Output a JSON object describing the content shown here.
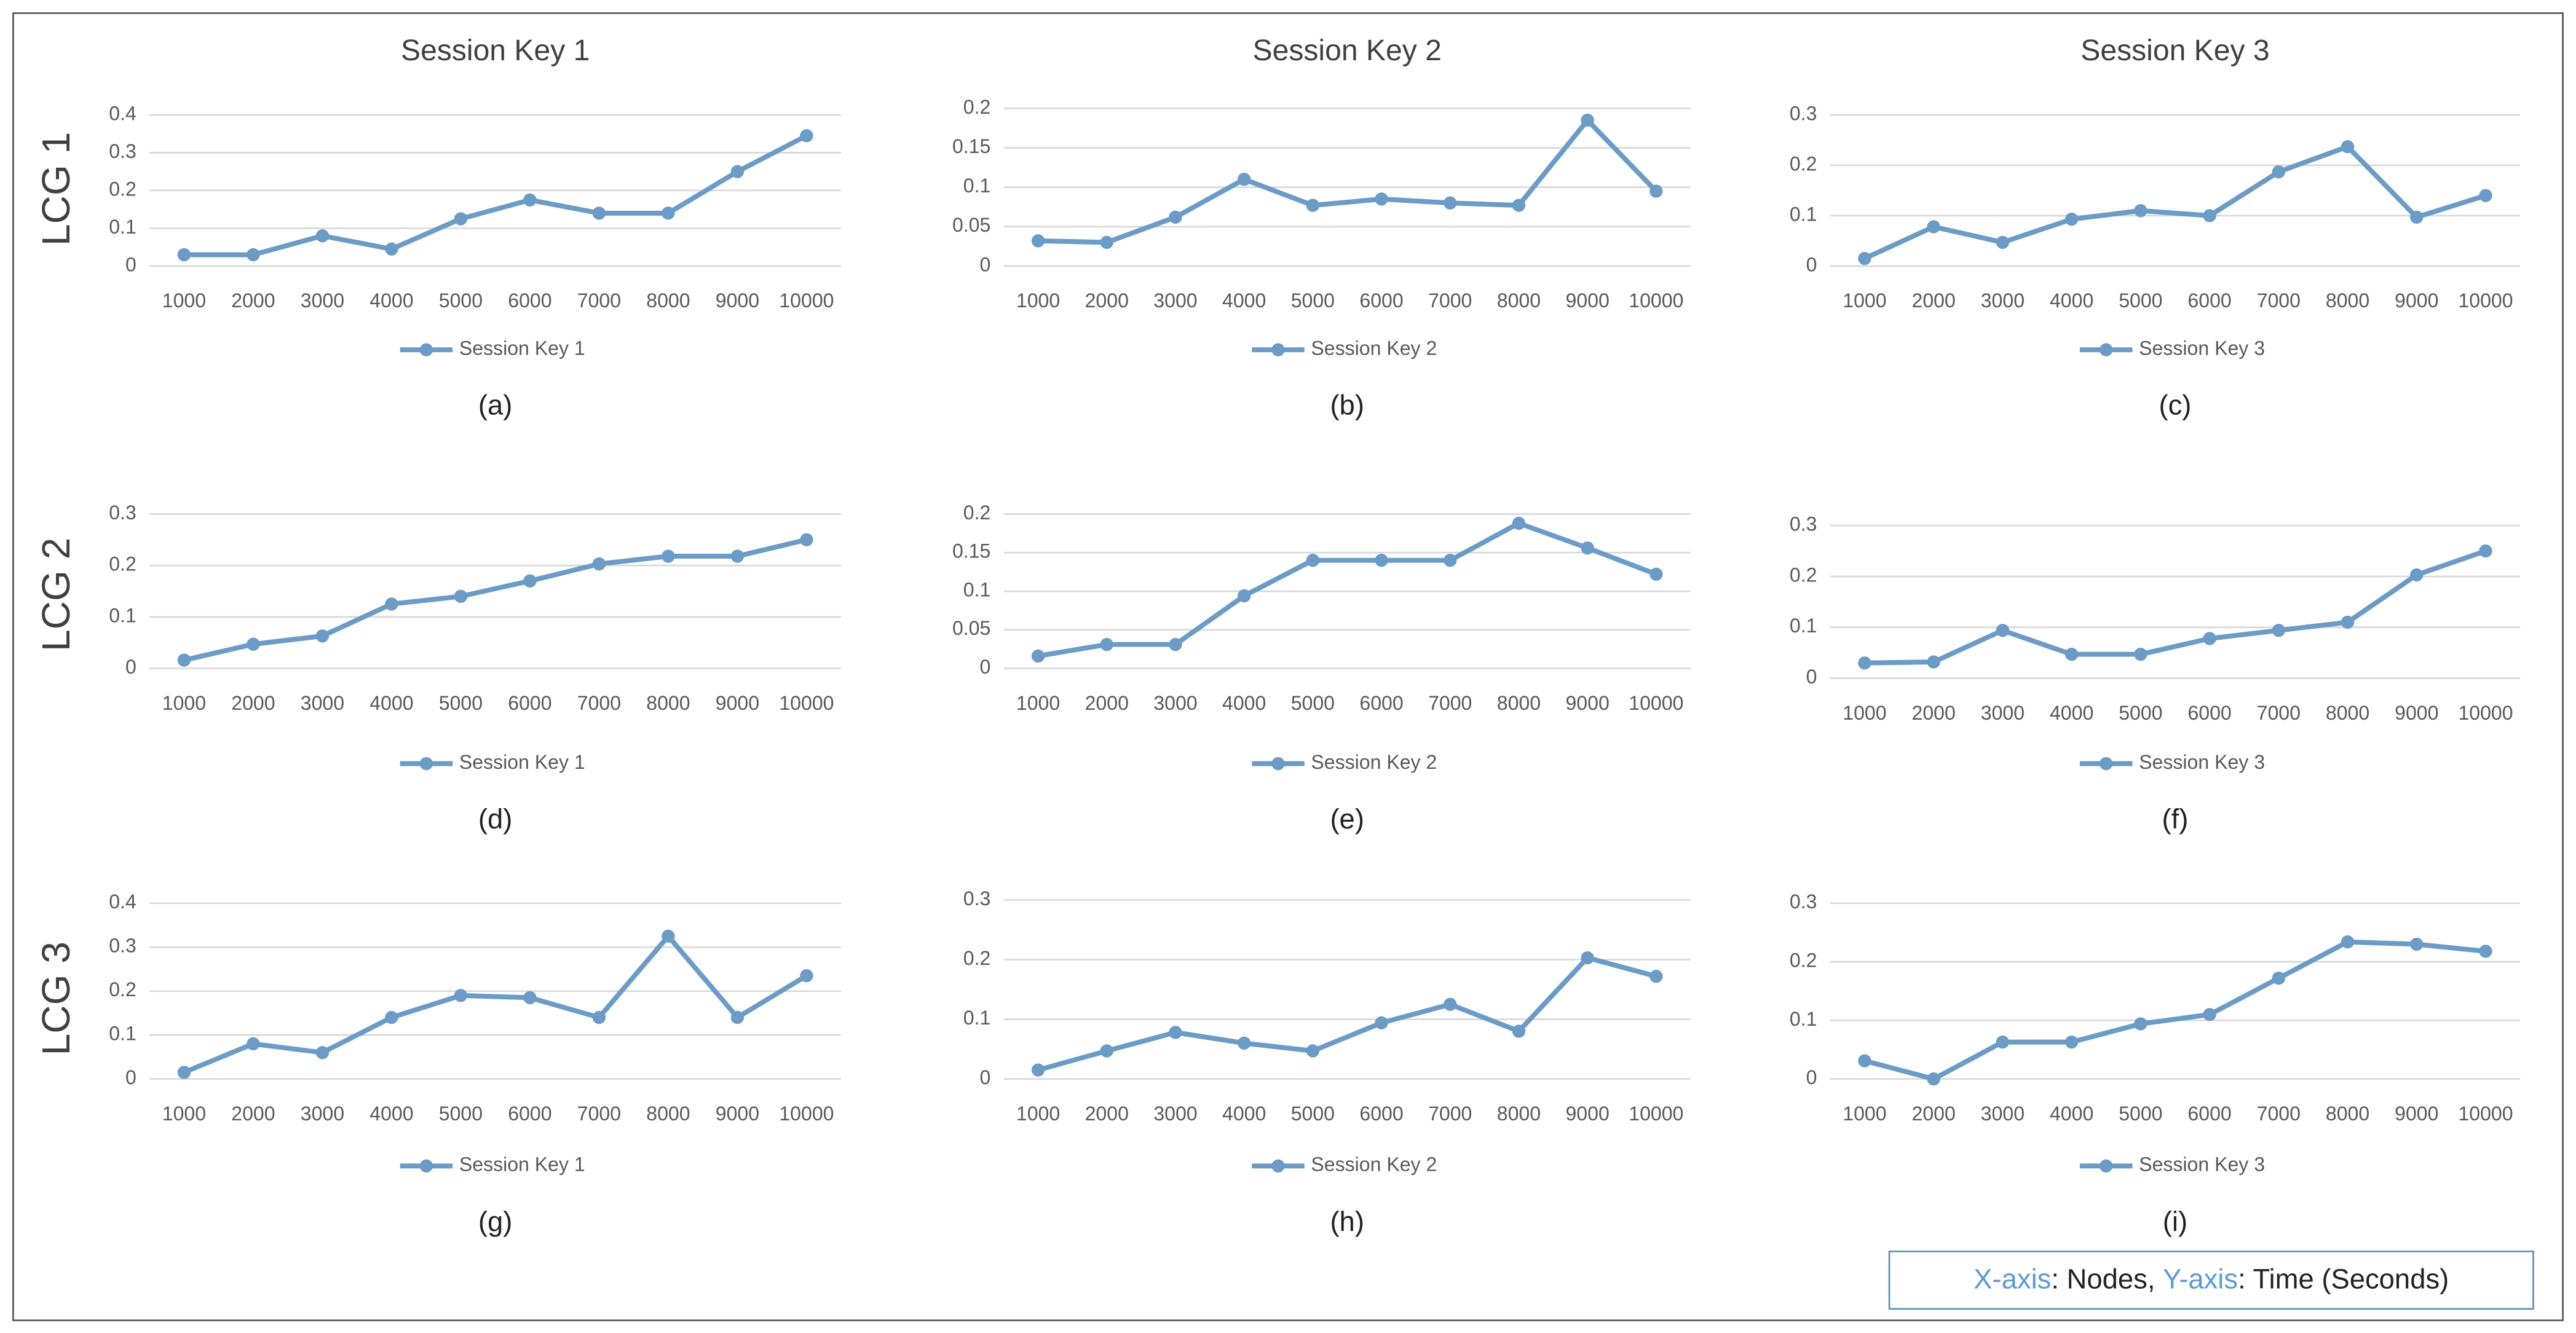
{
  "row_labels": [
    "LCG 1",
    "LCG 2",
    "LCG 3"
  ],
  "note": {
    "x_axis": "X-axis",
    "x_text": ": Nodes, ",
    "y_axis": "Y-axis",
    "y_text": ": Time (Seconds)"
  },
  "chart_data": [
    {
      "type": "line",
      "title": "Session Key 1",
      "caption": "(a)",
      "categories": [
        "1000",
        "2000",
        "3000",
        "4000",
        "5000",
        "6000",
        "7000",
        "8000",
        "9000",
        "10000"
      ],
      "series": [
        {
          "name": "Session Key 1",
          "color": "#6b9bc7",
          "values": [
            0.03,
            0.03,
            0.08,
            0.045,
            0.125,
            0.175,
            0.14,
            0.14,
            0.25,
            0.345
          ]
        }
      ],
      "ylim": [
        0,
        0.4
      ],
      "yticks": [
        0,
        0.1,
        0.2,
        0.3,
        0.4
      ],
      "grid": true
    },
    {
      "type": "line",
      "title": "Session Key 2",
      "caption": "(b)",
      "categories": [
        "1000",
        "2000",
        "3000",
        "4000",
        "5000",
        "6000",
        "7000",
        "8000",
        "9000",
        "10000"
      ],
      "series": [
        {
          "name": "Session Key 2",
          "color": "#6b9bc7",
          "values": [
            0.032,
            0.03,
            0.062,
            0.11,
            0.077,
            0.085,
            0.08,
            0.077,
            0.185,
            0.095
          ]
        }
      ],
      "ylim": [
        0,
        0.2
      ],
      "yticks": [
        0,
        0.05,
        0.1,
        0.15,
        0.2
      ],
      "grid": true
    },
    {
      "type": "line",
      "title": "Session Key 3",
      "caption": "(c)",
      "categories": [
        "1000",
        "2000",
        "3000",
        "4000",
        "5000",
        "6000",
        "7000",
        "8000",
        "9000",
        "10000"
      ],
      "series": [
        {
          "name": "Session Key 3",
          "color": "#6b9bc7",
          "values": [
            0.015,
            0.078,
            0.047,
            0.093,
            0.11,
            0.1,
            0.187,
            0.237,
            0.097,
            0.14
          ]
        }
      ],
      "ylim": [
        0,
        0.3
      ],
      "yticks": [
        0,
        0.1,
        0.2,
        0.3
      ],
      "grid": true
    },
    {
      "type": "line",
      "caption": "(d)",
      "categories": [
        "1000",
        "2000",
        "3000",
        "4000",
        "5000",
        "6000",
        "7000",
        "8000",
        "9000",
        "10000"
      ],
      "series": [
        {
          "name": "Session Key 1",
          "color": "#6b9bc7",
          "values": [
            0.016,
            0.047,
            0.063,
            0.125,
            0.14,
            0.17,
            0.203,
            0.218,
            0.218,
            0.25
          ]
        }
      ],
      "ylim": [
        0,
        0.3
      ],
      "yticks": [
        0,
        0.1,
        0.2,
        0.3
      ],
      "grid": true
    },
    {
      "type": "line",
      "caption": "(e)",
      "categories": [
        "1000",
        "2000",
        "3000",
        "4000",
        "5000",
        "6000",
        "7000",
        "8000",
        "9000",
        "10000"
      ],
      "series": [
        {
          "name": "Session Key 2",
          "color": "#6b9bc7",
          "values": [
            0.016,
            0.031,
            0.031,
            0.094,
            0.14,
            0.14,
            0.14,
            0.188,
            0.156,
            0.122
          ]
        }
      ],
      "ylim": [
        0,
        0.2
      ],
      "yticks": [
        0,
        0.05,
        0.1,
        0.15,
        0.2
      ],
      "grid": true
    },
    {
      "type": "line",
      "caption": "(f)",
      "categories": [
        "1000",
        "2000",
        "3000",
        "4000",
        "5000",
        "6000",
        "7000",
        "8000",
        "9000",
        "10000"
      ],
      "series": [
        {
          "name": "Session Key 3",
          "color": "#6b9bc7",
          "values": [
            0.03,
            0.032,
            0.094,
            0.047,
            0.047,
            0.078,
            0.094,
            0.11,
            0.203,
            0.25
          ]
        }
      ],
      "ylim": [
        0,
        0.3
      ],
      "yticks": [
        0,
        0.1,
        0.2,
        0.3
      ],
      "grid": true
    },
    {
      "type": "line",
      "caption": "(g)",
      "categories": [
        "1000",
        "2000",
        "3000",
        "4000",
        "5000",
        "6000",
        "7000",
        "8000",
        "9000",
        "10000"
      ],
      "series": [
        {
          "name": "Session Key 1",
          "color": "#6b9bc7",
          "values": [
            0.015,
            0.08,
            0.06,
            0.14,
            0.19,
            0.185,
            0.14,
            0.325,
            0.14,
            0.235
          ]
        }
      ],
      "ylim": [
        0,
        0.4
      ],
      "yticks": [
        0,
        0.1,
        0.2,
        0.3,
        0.4
      ],
      "grid": true
    },
    {
      "type": "line",
      "caption": "(h)",
      "categories": [
        "1000",
        "2000",
        "3000",
        "4000",
        "5000",
        "6000",
        "7000",
        "8000",
        "9000",
        "10000"
      ],
      "series": [
        {
          "name": "Session Key 2",
          "color": "#6b9bc7",
          "values": [
            0.015,
            0.047,
            0.078,
            0.06,
            0.047,
            0.094,
            0.125,
            0.08,
            0.203,
            0.172
          ]
        }
      ],
      "ylim": [
        0,
        0.3
      ],
      "yticks": [
        0,
        0.1,
        0.2,
        0.3
      ],
      "grid": true
    },
    {
      "type": "line",
      "caption": "(i)",
      "categories": [
        "1000",
        "2000",
        "3000",
        "4000",
        "5000",
        "6000",
        "7000",
        "8000",
        "9000",
        "10000"
      ],
      "series": [
        {
          "name": "Session Key 3",
          "color": "#6b9bc7",
          "values": [
            0.031,
            0,
            0.063,
            0.063,
            0.094,
            0.11,
            0.172,
            0.234,
            0.23,
            0.218
          ]
        }
      ],
      "ylim": [
        0,
        0.3
      ],
      "yticks": [
        0,
        0.1,
        0.2,
        0.3
      ],
      "grid": true
    }
  ]
}
